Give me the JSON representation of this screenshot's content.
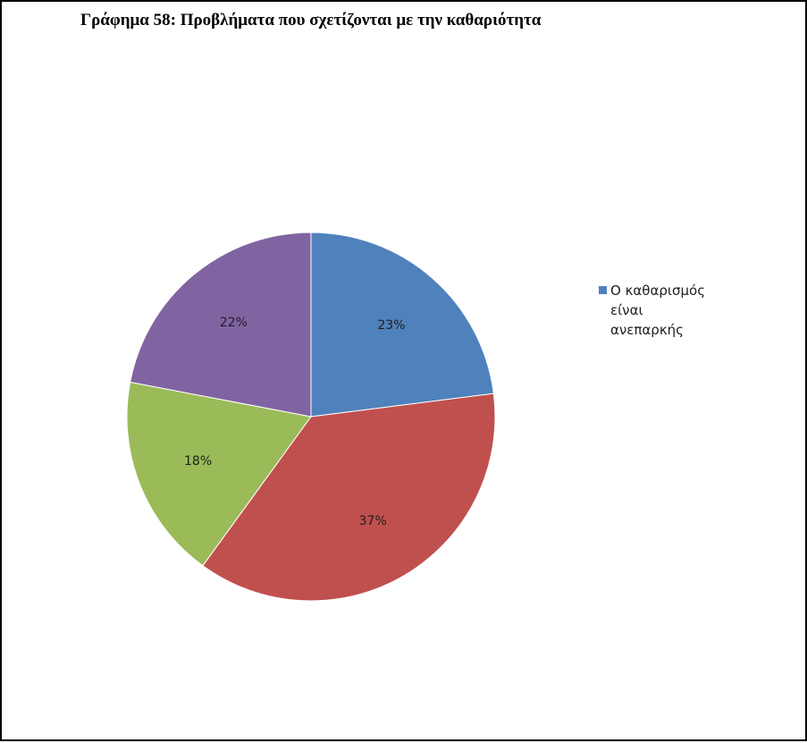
{
  "chart_data": {
    "type": "pie",
    "title": "Γράφημα 58: Προβλήματα που σχετίζονται με την καθαριότητα",
    "slices": [
      {
        "label": "Ο καθαρισμός είναι ανεπαρκής",
        "value": 23,
        "display": "23%",
        "color": "#4F81BD"
      },
      {
        "value": 37,
        "display": "37%",
        "color": "#C0504D"
      },
      {
        "value": 18,
        "display": "18%",
        "color": "#9BBB59"
      },
      {
        "value": 22,
        "display": "22%",
        "color": "#8064A2"
      }
    ],
    "legend": {
      "position": "right",
      "entries": [
        {
          "label": "Ο καθαρισμός είναι ανεπαρκής",
          "color": "#4F81BD"
        }
      ]
    },
    "start_angle": "top",
    "direction": "clockwise"
  }
}
